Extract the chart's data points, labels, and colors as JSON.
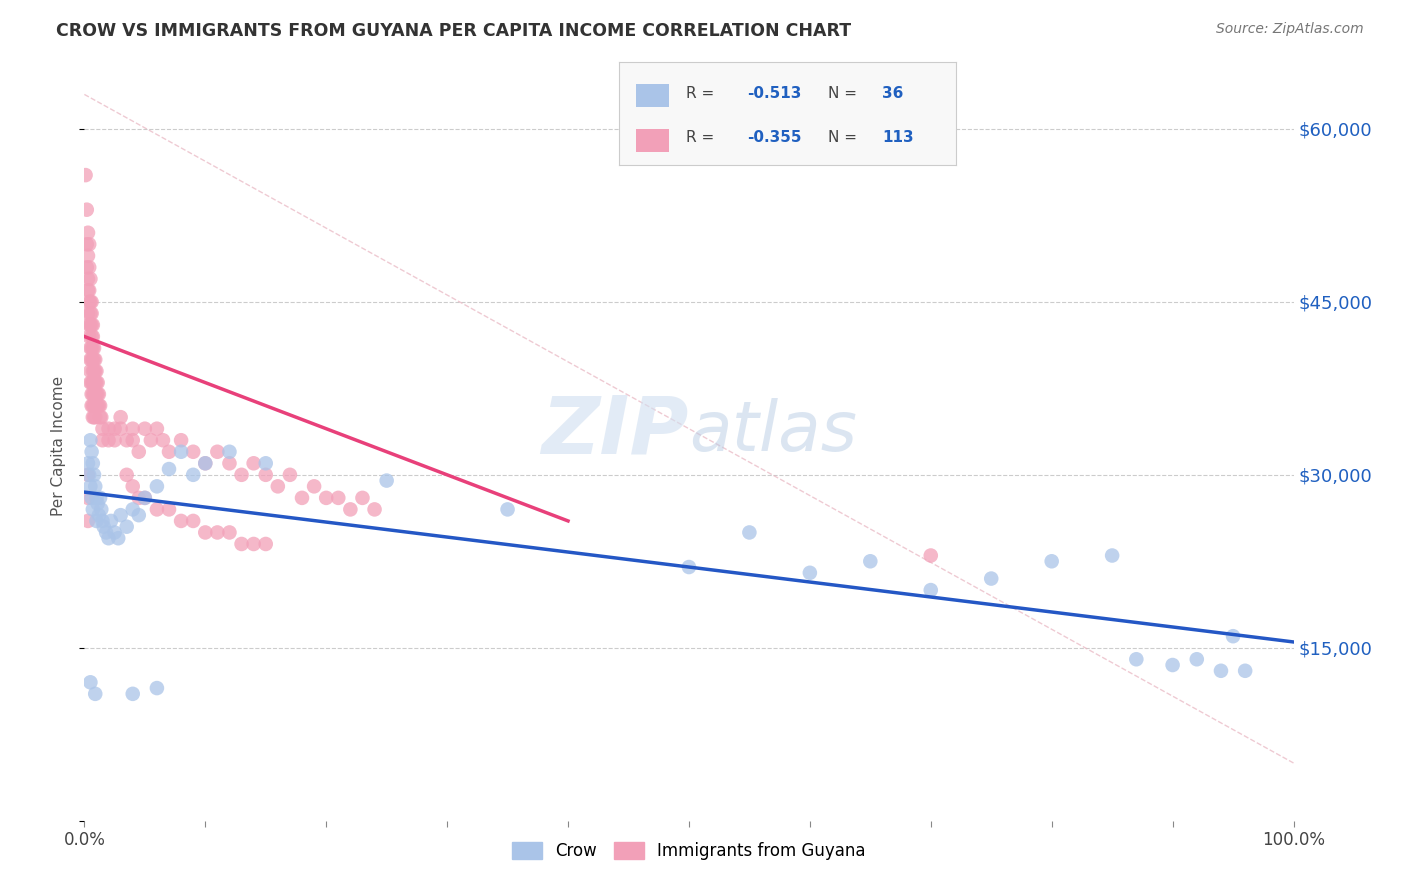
{
  "title": "CROW VS IMMIGRANTS FROM GUYANA PER CAPITA INCOME CORRELATION CHART",
  "source": "Source: ZipAtlas.com",
  "ylabel": "Per Capita Income",
  "yticks": [
    0,
    15000,
    30000,
    45000,
    60000
  ],
  "ytick_labels": [
    "",
    "$15,000",
    "$30,000",
    "$45,000",
    "$60,000"
  ],
  "xlim": [
    0.0,
    1.0
  ],
  "ylim": [
    5000,
    65000
  ],
  "crow_color": "#aac4e8",
  "guyana_color": "#f2a0b8",
  "crow_line_color": "#2457c5",
  "guyana_line_color": "#e8407a",
  "ref_line_color": "#e8b4c0",
  "watermark_zip": "ZIP",
  "watermark_atlas": "atlas",
  "crow_scatter": [
    [
      0.003,
      31000
    ],
    [
      0.004,
      30000
    ],
    [
      0.005,
      33000
    ],
    [
      0.005,
      29000
    ],
    [
      0.006,
      32000
    ],
    [
      0.006,
      28000
    ],
    [
      0.007,
      31000
    ],
    [
      0.007,
      27000
    ],
    [
      0.008,
      30000
    ],
    [
      0.009,
      29000
    ],
    [
      0.01,
      28000
    ],
    [
      0.01,
      26000
    ],
    [
      0.011,
      27500
    ],
    [
      0.012,
      26500
    ],
    [
      0.013,
      28000
    ],
    [
      0.014,
      27000
    ],
    [
      0.015,
      26000
    ],
    [
      0.016,
      25500
    ],
    [
      0.018,
      25000
    ],
    [
      0.02,
      24500
    ],
    [
      0.022,
      26000
    ],
    [
      0.025,
      25000
    ],
    [
      0.028,
      24500
    ],
    [
      0.03,
      26500
    ],
    [
      0.035,
      25500
    ],
    [
      0.04,
      27000
    ],
    [
      0.045,
      26500
    ],
    [
      0.05,
      28000
    ],
    [
      0.06,
      29000
    ],
    [
      0.07,
      30500
    ],
    [
      0.08,
      32000
    ],
    [
      0.09,
      30000
    ],
    [
      0.1,
      31000
    ],
    [
      0.12,
      32000
    ],
    [
      0.15,
      31000
    ],
    [
      0.25,
      29500
    ],
    [
      0.35,
      27000
    ],
    [
      0.5,
      22000
    ],
    [
      0.55,
      25000
    ],
    [
      0.6,
      21500
    ],
    [
      0.65,
      22500
    ],
    [
      0.7,
      20000
    ],
    [
      0.75,
      21000
    ],
    [
      0.8,
      22500
    ],
    [
      0.85,
      23000
    ],
    [
      0.87,
      14000
    ],
    [
      0.9,
      13500
    ],
    [
      0.92,
      14000
    ],
    [
      0.94,
      13000
    ],
    [
      0.95,
      16000
    ],
    [
      0.96,
      13000
    ],
    [
      0.04,
      11000
    ],
    [
      0.06,
      11500
    ],
    [
      0.005,
      12000
    ],
    [
      0.009,
      11000
    ]
  ],
  "guyana_scatter": [
    [
      0.001,
      56000
    ],
    [
      0.002,
      53000
    ],
    [
      0.002,
      50000
    ],
    [
      0.002,
      48000
    ],
    [
      0.003,
      51000
    ],
    [
      0.003,
      49000
    ],
    [
      0.003,
      47000
    ],
    [
      0.003,
      46000
    ],
    [
      0.003,
      44000
    ],
    [
      0.004,
      50000
    ],
    [
      0.004,
      48000
    ],
    [
      0.004,
      46000
    ],
    [
      0.004,
      45000
    ],
    [
      0.004,
      43000
    ],
    [
      0.004,
      42000
    ],
    [
      0.005,
      47000
    ],
    [
      0.005,
      45000
    ],
    [
      0.005,
      44000
    ],
    [
      0.005,
      43000
    ],
    [
      0.005,
      41000
    ],
    [
      0.005,
      40000
    ],
    [
      0.005,
      39000
    ],
    [
      0.005,
      38000
    ],
    [
      0.006,
      45000
    ],
    [
      0.006,
      44000
    ],
    [
      0.006,
      43000
    ],
    [
      0.006,
      42000
    ],
    [
      0.006,
      41000
    ],
    [
      0.006,
      40000
    ],
    [
      0.006,
      38000
    ],
    [
      0.006,
      37000
    ],
    [
      0.006,
      36000
    ],
    [
      0.007,
      43000
    ],
    [
      0.007,
      42000
    ],
    [
      0.007,
      41000
    ],
    [
      0.007,
      40000
    ],
    [
      0.007,
      39000
    ],
    [
      0.007,
      38000
    ],
    [
      0.007,
      37000
    ],
    [
      0.007,
      36000
    ],
    [
      0.007,
      35000
    ],
    [
      0.008,
      41000
    ],
    [
      0.008,
      40000
    ],
    [
      0.008,
      39000
    ],
    [
      0.008,
      38000
    ],
    [
      0.008,
      37000
    ],
    [
      0.008,
      36000
    ],
    [
      0.008,
      35000
    ],
    [
      0.009,
      40000
    ],
    [
      0.009,
      39000
    ],
    [
      0.009,
      38000
    ],
    [
      0.009,
      37000
    ],
    [
      0.009,
      36000
    ],
    [
      0.009,
      35000
    ],
    [
      0.01,
      39000
    ],
    [
      0.01,
      38000
    ],
    [
      0.01,
      37000
    ],
    [
      0.01,
      36000
    ],
    [
      0.011,
      38000
    ],
    [
      0.011,
      37000
    ],
    [
      0.011,
      36000
    ],
    [
      0.012,
      37000
    ],
    [
      0.012,
      36000
    ],
    [
      0.013,
      36000
    ],
    [
      0.013,
      35000
    ],
    [
      0.014,
      35000
    ],
    [
      0.015,
      34000
    ],
    [
      0.015,
      33000
    ],
    [
      0.02,
      34000
    ],
    [
      0.02,
      33000
    ],
    [
      0.025,
      34000
    ],
    [
      0.025,
      33000
    ],
    [
      0.03,
      35000
    ],
    [
      0.03,
      34000
    ],
    [
      0.035,
      33000
    ],
    [
      0.04,
      34000
    ],
    [
      0.04,
      33000
    ],
    [
      0.045,
      32000
    ],
    [
      0.05,
      34000
    ],
    [
      0.055,
      33000
    ],
    [
      0.06,
      34000
    ],
    [
      0.065,
      33000
    ],
    [
      0.07,
      32000
    ],
    [
      0.08,
      33000
    ],
    [
      0.09,
      32000
    ],
    [
      0.1,
      31000
    ],
    [
      0.11,
      32000
    ],
    [
      0.12,
      31000
    ],
    [
      0.13,
      30000
    ],
    [
      0.14,
      31000
    ],
    [
      0.15,
      30000
    ],
    [
      0.16,
      29000
    ],
    [
      0.17,
      30000
    ],
    [
      0.18,
      28000
    ],
    [
      0.19,
      29000
    ],
    [
      0.2,
      28000
    ],
    [
      0.21,
      28000
    ],
    [
      0.22,
      27000
    ],
    [
      0.23,
      28000
    ],
    [
      0.24,
      27000
    ],
    [
      0.035,
      30000
    ],
    [
      0.04,
      29000
    ],
    [
      0.045,
      28000
    ],
    [
      0.05,
      28000
    ],
    [
      0.06,
      27000
    ],
    [
      0.07,
      27000
    ],
    [
      0.08,
      26000
    ],
    [
      0.09,
      26000
    ],
    [
      0.1,
      25000
    ],
    [
      0.11,
      25000
    ],
    [
      0.12,
      25000
    ],
    [
      0.13,
      24000
    ],
    [
      0.14,
      24000
    ],
    [
      0.15,
      24000
    ],
    [
      0.7,
      23000
    ],
    [
      0.003,
      30000
    ],
    [
      0.003,
      28000
    ],
    [
      0.003,
      26000
    ]
  ],
  "crow_line": [
    [
      0.0,
      28500
    ],
    [
      1.0,
      15500
    ]
  ],
  "guyana_line": [
    [
      0.0,
      42000
    ],
    [
      0.4,
      26000
    ]
  ],
  "ref_line": [
    [
      0.0,
      63000
    ],
    [
      1.0,
      5000
    ]
  ]
}
